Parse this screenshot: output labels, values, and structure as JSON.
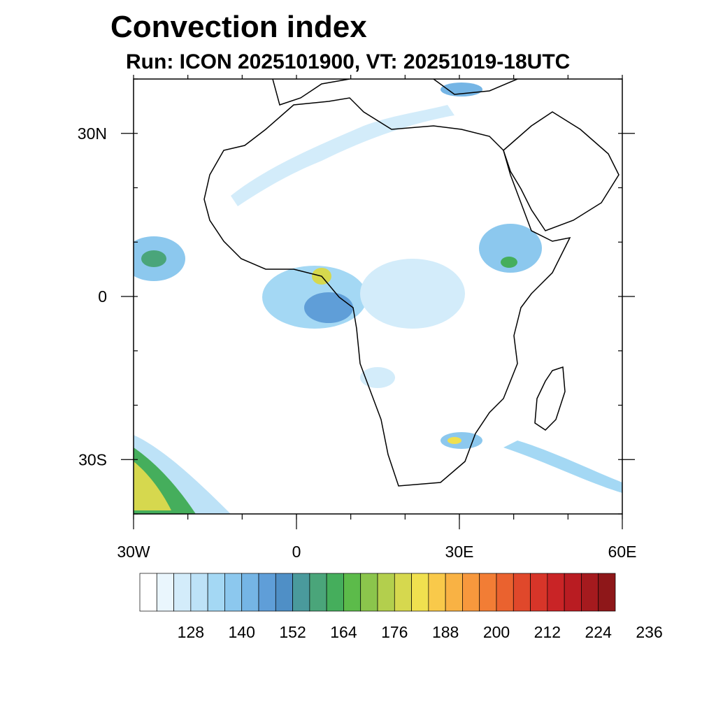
{
  "map": {
    "title": "Convection index",
    "subtitle": "Run: ICON 2025101900,  VT: 20251019-18UTC",
    "lat_labels": [
      {
        "label": "30N",
        "lat": 30
      },
      {
        "label": "0",
        "lat": 0
      },
      {
        "label": "30S",
        "lat": -30
      }
    ],
    "lon_labels": [
      {
        "label": "30W",
        "lon": -30
      },
      {
        "label": "0",
        "lon": 0
      },
      {
        "label": "30E",
        "lon": 30
      },
      {
        "label": "60E",
        "lon": 60
      }
    ],
    "extent": {
      "lon_min": -30,
      "lon_max": 60,
      "lat_min": -40,
      "lat_max": 40
    },
    "colorbar": {
      "labels": [
        "128",
        "140",
        "152",
        "164",
        "176",
        "188",
        "200",
        "212",
        "224",
        "236"
      ],
      "colors": [
        "#ffffff",
        "#eaf6fd",
        "#d3ecfa",
        "#bde2f7",
        "#a4d8f4",
        "#8cc8ee",
        "#75b5e5",
        "#5f9ed8",
        "#4f8fc6",
        "#4a9a9c",
        "#4aa57a",
        "#45ae5c",
        "#5cbb4a",
        "#8bc54c",
        "#b3cf4d",
        "#d6d84e",
        "#f0e04f",
        "#f9c94a",
        "#f9b244",
        "#f7983d",
        "#f27d35",
        "#ea622f",
        "#e0482b",
        "#d73529",
        "#c92426",
        "#b91c22",
        "#a51a1e",
        "#8e1719"
      ]
    }
  }
}
